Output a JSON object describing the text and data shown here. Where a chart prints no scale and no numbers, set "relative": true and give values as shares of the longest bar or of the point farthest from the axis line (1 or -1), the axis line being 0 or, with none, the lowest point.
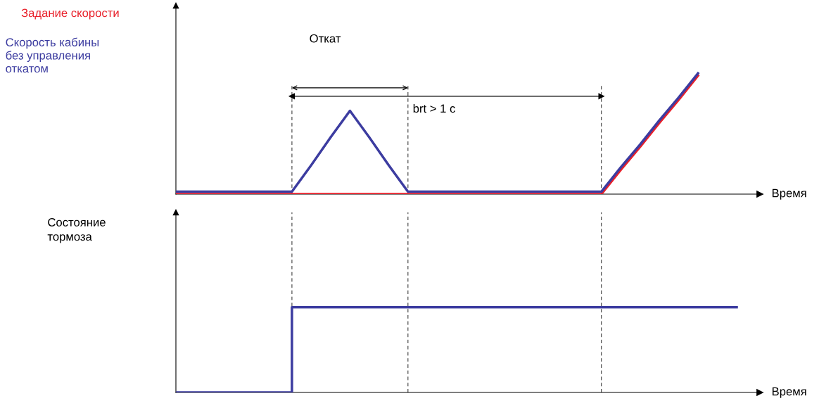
{
  "chart_data": [
    {
      "type": "line",
      "relative": true,
      "legend": false,
      "xlabel": "Время",
      "categories": [
        null,
        null,
        null,
        null,
        null,
        null,
        null,
        null,
        null,
        null,
        null,
        null,
        null,
        null,
        null,
        null,
        null,
        null,
        null,
        null,
        null,
        null,
        null,
        null,
        null,
        null,
        null,
        null,
        null,
        null,
        null
      ],
      "series": [
        {
          "name": "Задание скорости",
          "color": "#e8202a",
          "values": [
            0,
            0,
            0,
            0,
            0,
            0,
            0,
            0,
            0,
            0,
            0,
            0,
            0,
            0,
            0,
            0,
            0,
            0,
            0,
            0,
            0,
            0,
            0,
            0.2,
            0.39,
            0.59,
            0.78,
            0.98,
            null,
            null,
            null
          ]
        },
        {
          "name": "Скорость кабины\nбез управления\nоткатом",
          "color": "#3c3ca0",
          "values": [
            0.02,
            0.02,
            0.02,
            0.02,
            0.02,
            0.02,
            0.02,
            0.24,
            0.47,
            0.69,
            0.47,
            0.24,
            0.02,
            0.02,
            0.02,
            0.02,
            0.02,
            0.02,
            0.02,
            0.02,
            0.02,
            0.02,
            0.02,
            0.22,
            0.41,
            0.61,
            0.8,
            1.0,
            null,
            null,
            null
          ]
        }
      ],
      "grid": "x",
      "annotations": [
        "Откат",
        "brt > 1 с"
      ]
    },
    {
      "type": "step",
      "relative": true,
      "legend": false,
      "xlabel": "Время",
      "ylabel": "Состояние\nтормоза",
      "categories": [
        null,
        null,
        null,
        null,
        null,
        null,
        null,
        null,
        null,
        null,
        null,
        null,
        null,
        null,
        null,
        null,
        null,
        null,
        null,
        null,
        null,
        null,
        null,
        null,
        null,
        null,
        null,
        null,
        null,
        null,
        null
      ],
      "series": [
        {
          "color": "#3c3ca0",
          "values": [
            0,
            0,
            0,
            0,
            0,
            0,
            1,
            1,
            1,
            1,
            1,
            1,
            1,
            1,
            1,
            1,
            1,
            1,
            1,
            1,
            1,
            1,
            1,
            1,
            1,
            1,
            1,
            1,
            1,
            1,
            null
          ]
        }
      ],
      "grid": "x"
    }
  ]
}
